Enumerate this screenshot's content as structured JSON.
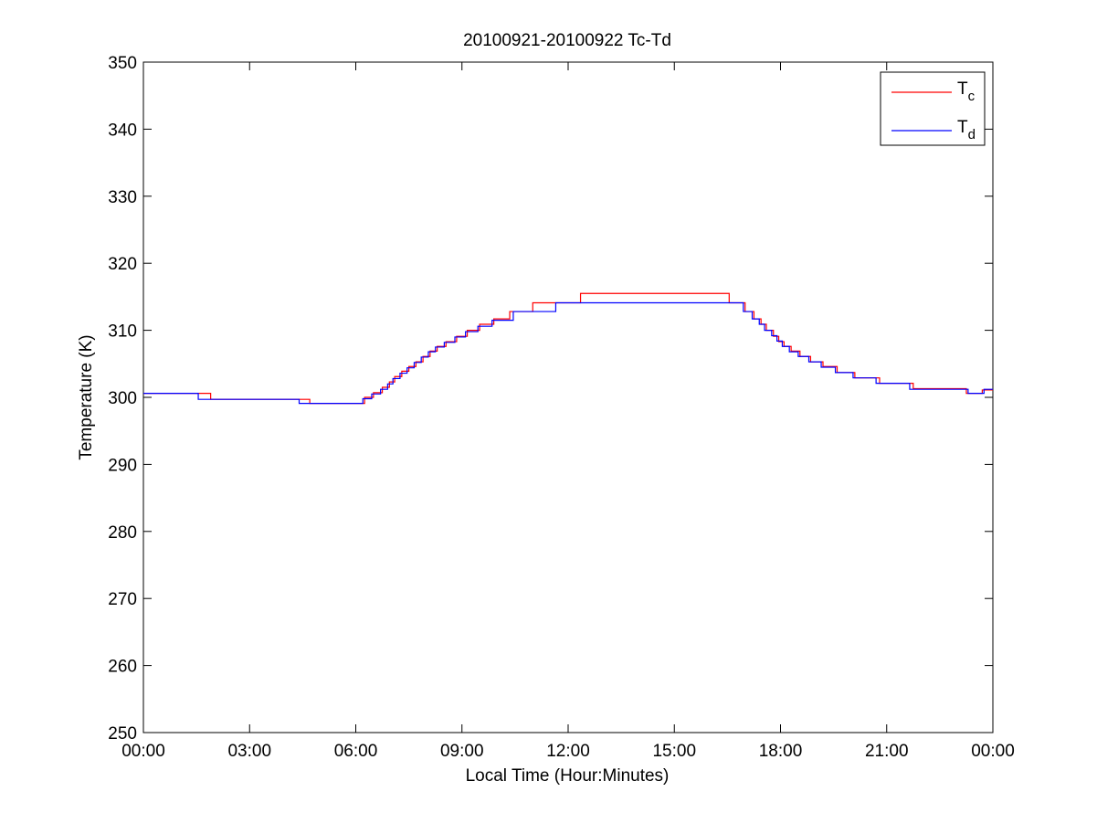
{
  "chart_data": {
    "type": "line",
    "title": "20100921-20100922 Tc-Td",
    "xlabel": "Local Time (Hour:Minutes)",
    "ylabel": "Temperature (K)",
    "xlim": [
      0,
      24
    ],
    "ylim": [
      250,
      350
    ],
    "x_unit": "hours",
    "x_ticks": [
      0,
      3,
      6,
      9,
      12,
      15,
      18,
      21,
      24
    ],
    "x_tick_labels": [
      "00:00",
      "03:00",
      "06:00",
      "09:00",
      "12:00",
      "15:00",
      "18:00",
      "21:00",
      "00:00"
    ],
    "y_ticks": [
      250,
      260,
      270,
      280,
      290,
      300,
      310,
      320,
      330,
      340,
      350
    ],
    "y_tick_labels": [
      "250",
      "260",
      "270",
      "280",
      "290",
      "300",
      "310",
      "320",
      "330",
      "340",
      "350"
    ],
    "grid": false,
    "legend_position": "top-right",
    "series": [
      {
        "name": "T",
        "name_subscript": "c",
        "color": "#ff0000",
        "step": true,
        "x": [
          0,
          1.9,
          4.7,
          6.25,
          6.5,
          6.75,
          6.95,
          7.1,
          7.3,
          7.5,
          7.7,
          7.9,
          8.1,
          8.3,
          8.55,
          8.85,
          9.15,
          9.5,
          9.9,
          10.35,
          11.0,
          11.6,
          12.35,
          16.55,
          17.0,
          17.25,
          17.45,
          17.6,
          17.8,
          17.95,
          18.1,
          18.3,
          18.55,
          18.85,
          19.2,
          19.6,
          20.1,
          20.8,
          21.75,
          23.25,
          23.7,
          24
        ],
        "y": [
          300.6,
          299.7,
          299.1,
          300.0,
          300.7,
          301.5,
          302.3,
          303.1,
          303.9,
          304.6,
          305.3,
          306.1,
          306.9,
          307.6,
          308.3,
          309.1,
          310.0,
          310.9,
          311.7,
          312.8,
          314.1,
          314.1,
          315.5,
          314.1,
          312.8,
          311.7,
          310.9,
          310.0,
          309.1,
          308.3,
          307.6,
          306.9,
          306.1,
          305.3,
          304.6,
          303.7,
          302.9,
          302.1,
          301.3,
          300.6,
          301.1,
          301.1
        ]
      },
      {
        "name": "T",
        "name_subscript": "d",
        "color": "#0000ff",
        "step": true,
        "x": [
          0,
          1.55,
          4.4,
          6.2,
          6.45,
          6.7,
          6.9,
          7.05,
          7.25,
          7.45,
          7.65,
          7.85,
          8.05,
          8.25,
          8.5,
          8.8,
          9.1,
          9.45,
          9.85,
          10.45,
          11.65,
          16.95,
          17.2,
          17.4,
          17.55,
          17.75,
          17.9,
          18.05,
          18.25,
          18.5,
          18.8,
          19.15,
          19.55,
          20.05,
          20.7,
          21.65,
          23.3,
          23.75,
          24
        ],
        "y": [
          300.6,
          299.7,
          299.1,
          299.8,
          300.5,
          301.2,
          302.0,
          302.8,
          303.6,
          304.4,
          305.2,
          306.0,
          306.8,
          307.5,
          308.2,
          309.0,
          309.8,
          310.6,
          311.5,
          312.8,
          314.1,
          312.8,
          311.7,
          310.9,
          310.0,
          309.2,
          308.4,
          307.6,
          306.8,
          306.1,
          305.3,
          304.5,
          303.7,
          302.9,
          302.1,
          301.2,
          300.6,
          301.2,
          301.2
        ]
      }
    ]
  }
}
